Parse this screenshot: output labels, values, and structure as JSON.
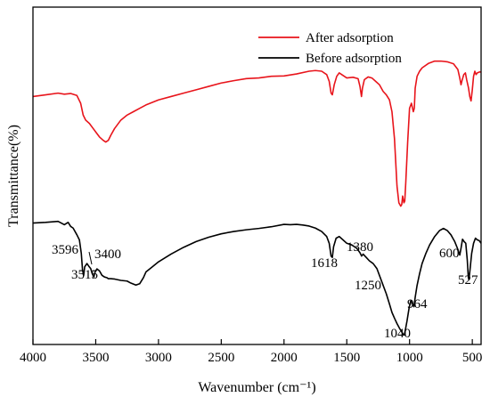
{
  "chart_data": {
    "type": "line",
    "xlabel": "Wavenumber (cm⁻¹)",
    "ylabel": "Transmittance(%)",
    "xlim": [
      4000,
      430
    ],
    "ylim": [
      0,
      1
    ],
    "x_reversed": true,
    "y_ticks_shown": false,
    "x_ticks": [
      4000,
      3500,
      3000,
      2500,
      2000,
      1500,
      1000,
      500
    ],
    "x_tick_labels": [
      "4000",
      "3500",
      "3000",
      "2500",
      "2000",
      "1500",
      "1000",
      "500"
    ],
    "legend": {
      "placement": "top-right"
    },
    "series": [
      {
        "name": "After adsorption",
        "color": "#e8141b",
        "points": [
          [
            4000,
            0.735
          ],
          [
            3900,
            0.74
          ],
          [
            3800,
            0.745
          ],
          [
            3750,
            0.742
          ],
          [
            3700,
            0.744
          ],
          [
            3650,
            0.738
          ],
          [
            3620,
            0.715
          ],
          [
            3600,
            0.68
          ],
          [
            3580,
            0.665
          ],
          [
            3550,
            0.655
          ],
          [
            3520,
            0.64
          ],
          [
            3500,
            0.63
          ],
          [
            3470,
            0.615
          ],
          [
            3440,
            0.605
          ],
          [
            3420,
            0.6
          ],
          [
            3400,
            0.605
          ],
          [
            3380,
            0.62
          ],
          [
            3350,
            0.64
          ],
          [
            3300,
            0.665
          ],
          [
            3250,
            0.68
          ],
          [
            3200,
            0.69
          ],
          [
            3150,
            0.7
          ],
          [
            3100,
            0.71
          ],
          [
            3000,
            0.725
          ],
          [
            2900,
            0.735
          ],
          [
            2800,
            0.745
          ],
          [
            2700,
            0.755
          ],
          [
            2600,
            0.765
          ],
          [
            2500,
            0.775
          ],
          [
            2400,
            0.782
          ],
          [
            2300,
            0.788
          ],
          [
            2200,
            0.79
          ],
          [
            2100,
            0.795
          ],
          [
            2000,
            0.796
          ],
          [
            1900,
            0.802
          ],
          [
            1800,
            0.81
          ],
          [
            1750,
            0.812
          ],
          [
            1700,
            0.81
          ],
          [
            1660,
            0.8
          ],
          [
            1640,
            0.78
          ],
          [
            1625,
            0.745
          ],
          [
            1615,
            0.74
          ],
          [
            1600,
            0.77
          ],
          [
            1580,
            0.795
          ],
          [
            1560,
            0.805
          ],
          [
            1540,
            0.8
          ],
          [
            1500,
            0.79
          ],
          [
            1450,
            0.792
          ],
          [
            1410,
            0.788
          ],
          [
            1395,
            0.765
          ],
          [
            1383,
            0.735
          ],
          [
            1375,
            0.76
          ],
          [
            1360,
            0.785
          ],
          [
            1330,
            0.793
          ],
          [
            1300,
            0.79
          ],
          [
            1270,
            0.78
          ],
          [
            1240,
            0.77
          ],
          [
            1210,
            0.75
          ],
          [
            1185,
            0.74
          ],
          [
            1160,
            0.725
          ],
          [
            1140,
            0.69
          ],
          [
            1120,
            0.61
          ],
          [
            1100,
            0.47
          ],
          [
            1085,
            0.42
          ],
          [
            1070,
            0.41
          ],
          [
            1062,
            0.415
          ],
          [
            1055,
            0.44
          ],
          [
            1045,
            0.42
          ],
          [
            1038,
            0.425
          ],
          [
            1030,
            0.48
          ],
          [
            1015,
            0.6
          ],
          [
            1000,
            0.7
          ],
          [
            985,
            0.715
          ],
          [
            970,
            0.69
          ],
          [
            962,
            0.7
          ],
          [
            955,
            0.76
          ],
          [
            940,
            0.795
          ],
          [
            920,
            0.81
          ],
          [
            900,
            0.82
          ],
          [
            850,
            0.833
          ],
          [
            800,
            0.84
          ],
          [
            750,
            0.84
          ],
          [
            700,
            0.838
          ],
          [
            650,
            0.832
          ],
          [
            615,
            0.815
          ],
          [
            600,
            0.79
          ],
          [
            590,
            0.77
          ],
          [
            580,
            0.785
          ],
          [
            568,
            0.8
          ],
          [
            555,
            0.805
          ],
          [
            545,
            0.785
          ],
          [
            530,
            0.76
          ],
          [
            520,
            0.735
          ],
          [
            510,
            0.722
          ],
          [
            500,
            0.755
          ],
          [
            490,
            0.795
          ],
          [
            480,
            0.81
          ],
          [
            470,
            0.8
          ],
          [
            460,
            0.805
          ],
          [
            440,
            0.808
          ],
          [
            430,
            0.807
          ]
        ]
      },
      {
        "name": "Before adsorption",
        "color": "#000000",
        "points": [
          [
            4000,
            0.36
          ],
          [
            3900,
            0.362
          ],
          [
            3800,
            0.365
          ],
          [
            3750,
            0.355
          ],
          [
            3720,
            0.362
          ],
          [
            3700,
            0.35
          ],
          [
            3680,
            0.345
          ],
          [
            3650,
            0.325
          ],
          [
            3630,
            0.31
          ],
          [
            3615,
            0.27
          ],
          [
            3605,
            0.22
          ],
          [
            3596,
            0.205
          ],
          [
            3588,
            0.23
          ],
          [
            3570,
            0.24
          ],
          [
            3555,
            0.232
          ],
          [
            3540,
            0.225
          ],
          [
            3528,
            0.21
          ],
          [
            3515,
            0.2
          ],
          [
            3505,
            0.215
          ],
          [
            3490,
            0.224
          ],
          [
            3470,
            0.218
          ],
          [
            3450,
            0.205
          ],
          [
            3430,
            0.2
          ],
          [
            3410,
            0.198
          ],
          [
            3400,
            0.195
          ],
          [
            3380,
            0.195
          ],
          [
            3350,
            0.194
          ],
          [
            3300,
            0.19
          ],
          [
            3250,
            0.188
          ],
          [
            3220,
            0.182
          ],
          [
            3180,
            0.176
          ],
          [
            3150,
            0.18
          ],
          [
            3120,
            0.198
          ],
          [
            3100,
            0.215
          ],
          [
            3050,
            0.23
          ],
          [
            3000,
            0.245
          ],
          [
            2900,
            0.268
          ],
          [
            2800,
            0.288
          ],
          [
            2700,
            0.305
          ],
          [
            2600,
            0.318
          ],
          [
            2500,
            0.328
          ],
          [
            2400,
            0.335
          ],
          [
            2300,
            0.34
          ],
          [
            2200,
            0.344
          ],
          [
            2100,
            0.349
          ],
          [
            2000,
            0.356
          ],
          [
            1950,
            0.355
          ],
          [
            1900,
            0.356
          ],
          [
            1850,
            0.354
          ],
          [
            1800,
            0.351
          ],
          [
            1750,
            0.345
          ],
          [
            1700,
            0.335
          ],
          [
            1660,
            0.32
          ],
          [
            1640,
            0.3
          ],
          [
            1625,
            0.262
          ],
          [
            1615,
            0.258
          ],
          [
            1605,
            0.29
          ],
          [
            1585,
            0.315
          ],
          [
            1560,
            0.32
          ],
          [
            1530,
            0.31
          ],
          [
            1500,
            0.3
          ],
          [
            1460,
            0.295
          ],
          [
            1420,
            0.285
          ],
          [
            1395,
            0.272
          ],
          [
            1382,
            0.262
          ],
          [
            1370,
            0.268
          ],
          [
            1345,
            0.258
          ],
          [
            1320,
            0.248
          ],
          [
            1290,
            0.24
          ],
          [
            1260,
            0.225
          ],
          [
            1235,
            0.2
          ],
          [
            1210,
            0.175
          ],
          [
            1185,
            0.15
          ],
          [
            1160,
            0.12
          ],
          [
            1140,
            0.095
          ],
          [
            1120,
            0.078
          ],
          [
            1100,
            0.062
          ],
          [
            1080,
            0.048
          ],
          [
            1060,
            0.036
          ],
          [
            1050,
            0.03
          ],
          [
            1042,
            0.028
          ],
          [
            1035,
            0.04
          ],
          [
            1020,
            0.07
          ],
          [
            1005,
            0.105
          ],
          [
            990,
            0.13
          ],
          [
            975,
            0.12
          ],
          [
            965,
            0.112
          ],
          [
            955,
            0.14
          ],
          [
            940,
            0.175
          ],
          [
            920,
            0.21
          ],
          [
            900,
            0.24
          ],
          [
            870,
            0.27
          ],
          [
            840,
            0.295
          ],
          [
            800,
            0.32
          ],
          [
            760,
            0.338
          ],
          [
            730,
            0.344
          ],
          [
            700,
            0.338
          ],
          [
            670,
            0.325
          ],
          [
            640,
            0.305
          ],
          [
            615,
            0.282
          ],
          [
            600,
            0.265
          ],
          [
            590,
            0.285
          ],
          [
            578,
            0.312
          ],
          [
            565,
            0.305
          ],
          [
            552,
            0.3
          ],
          [
            540,
            0.25
          ],
          [
            532,
            0.2
          ],
          [
            527,
            0.192
          ],
          [
            520,
            0.215
          ],
          [
            505,
            0.27
          ],
          [
            490,
            0.3
          ],
          [
            475,
            0.315
          ],
          [
            460,
            0.31
          ],
          [
            445,
            0.308
          ],
          [
            430,
            0.3
          ]
        ]
      }
    ],
    "annotations": [
      {
        "id": "3596",
        "text": "3596",
        "x": 3596
      },
      {
        "id": "3515",
        "text": "3515",
        "x": 3515
      },
      {
        "id": "3400",
        "text": "3400",
        "x": 3400
      },
      {
        "id": "1618",
        "text": "1618",
        "x": 1618
      },
      {
        "id": "1380",
        "text": "1380",
        "x": 1380
      },
      {
        "id": "1250",
        "text": "1250",
        "x": 1250
      },
      {
        "id": "1040",
        "text": "1040",
        "x": 1040
      },
      {
        "id": "964",
        "text": "964",
        "x": 964
      },
      {
        "id": "600",
        "text": "600",
        "x": 600
      },
      {
        "id": "527",
        "text": "527",
        "x": 527
      }
    ]
  }
}
